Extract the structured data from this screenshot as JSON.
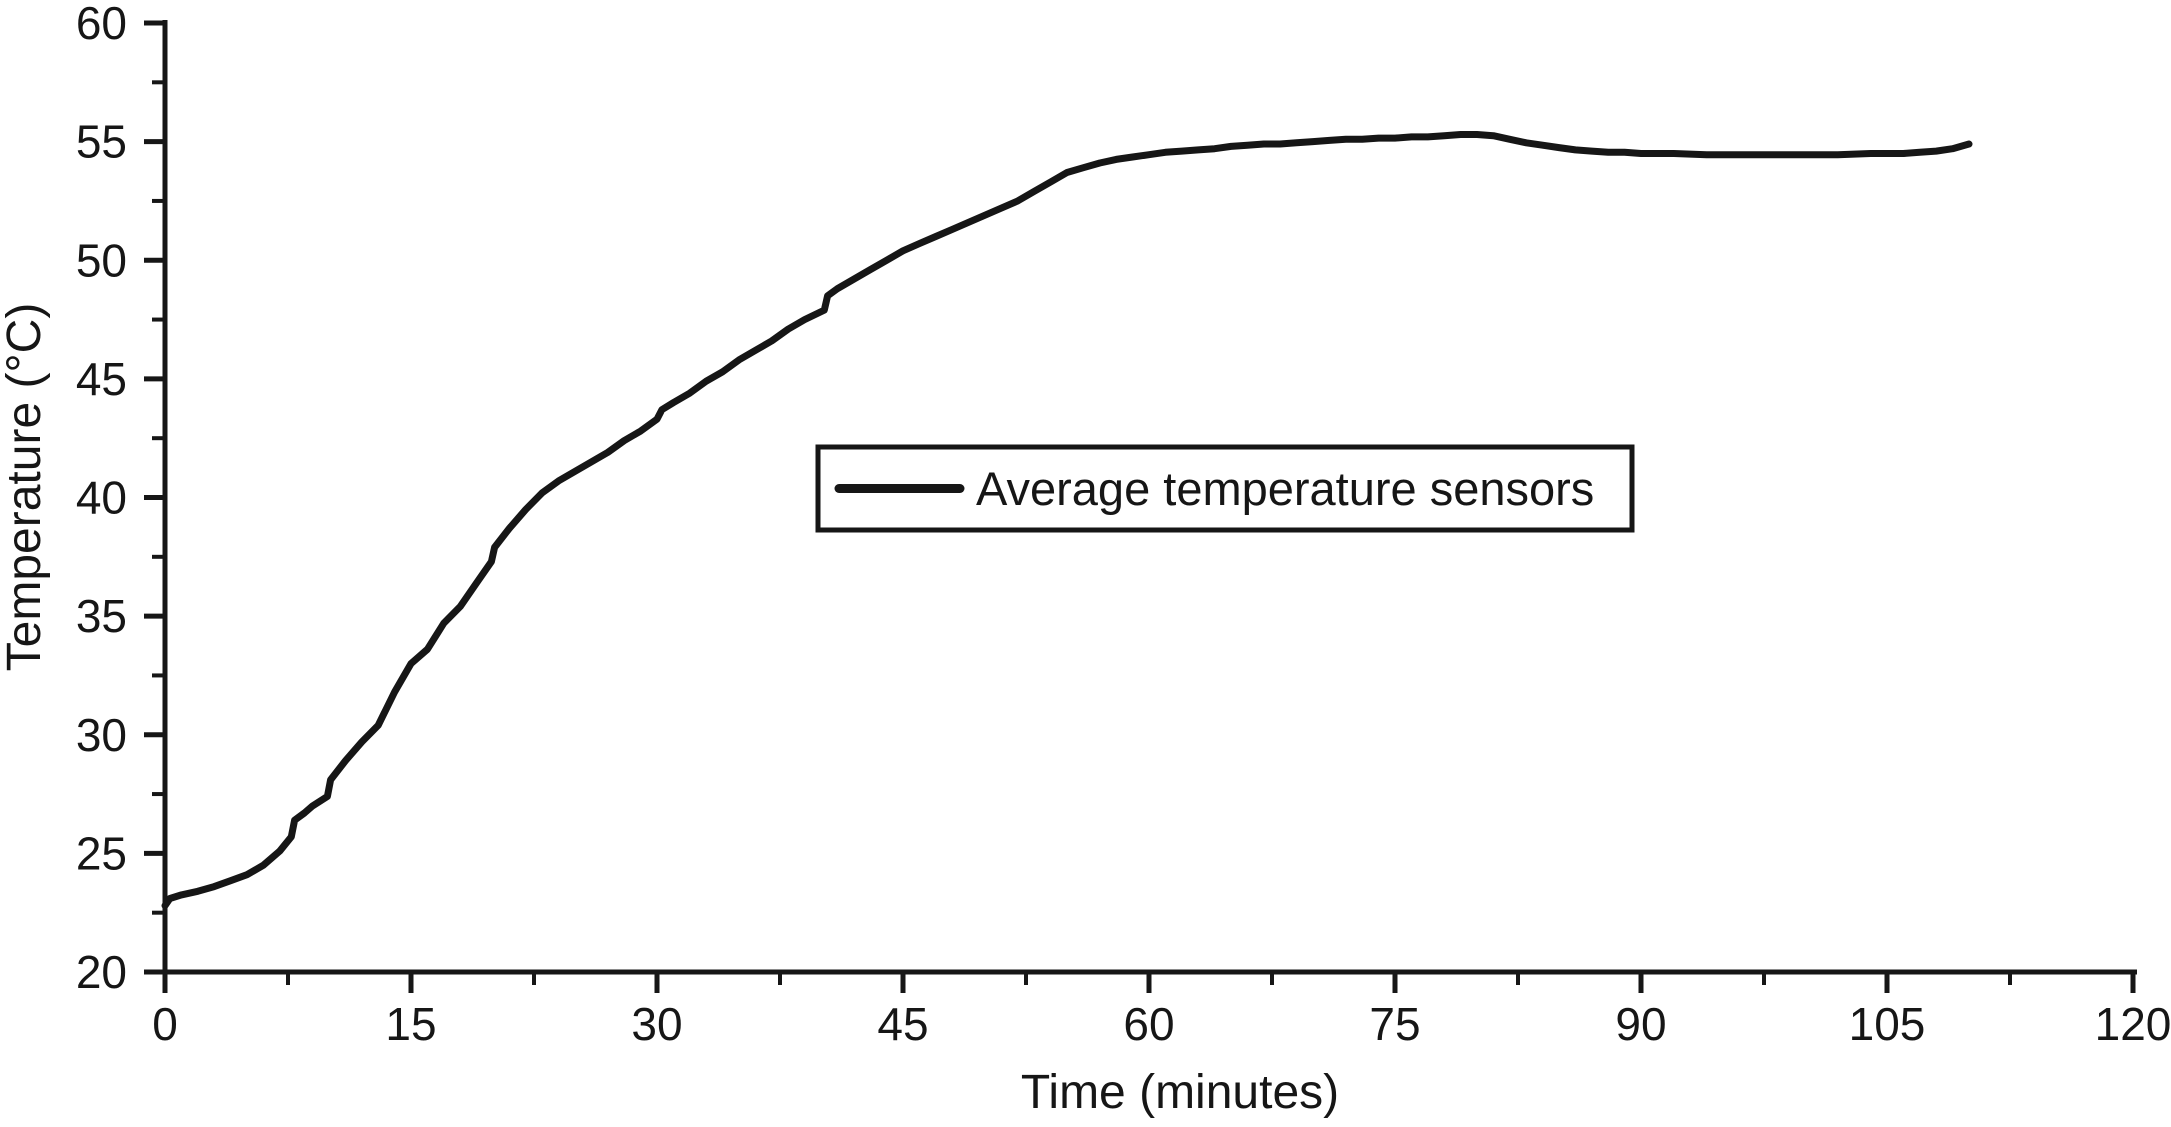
{
  "figure": {
    "background_color": "#ffffff",
    "ink_color": "#161616"
  },
  "chart_data": {
    "type": "line",
    "title": "",
    "xlabel": "Time (minutes)",
    "ylabel": "Temperature (°C)",
    "xlim": [
      0,
      120
    ],
    "ylim": [
      20,
      60
    ],
    "grid": false,
    "x_major_ticks": [
      0,
      15,
      30,
      45,
      60,
      75,
      90,
      105,
      120
    ],
    "x_tick_labels": [
      "0",
      "15",
      "30",
      "45",
      "60",
      "75",
      "90",
      "105",
      "120"
    ],
    "x_minor_ticks": [
      7.5,
      22.5,
      37.5,
      52.5,
      67.5,
      82.5,
      97.5,
      112.5
    ],
    "y_major_ticks": [
      20,
      25,
      30,
      35,
      40,
      45,
      50,
      55,
      60
    ],
    "y_tick_labels": [
      "20",
      "25",
      "30",
      "35",
      "40",
      "45",
      "50",
      "55",
      "60"
    ],
    "y_minor_ticks": [
      22.5,
      27.5,
      32.5,
      37.5,
      42.5,
      47.5,
      52.5,
      57.5
    ],
    "legend": {
      "position": "inside-center",
      "border": true,
      "entries": [
        {
          "label": "Average temperature sensors",
          "color": "#161616",
          "line_width": 9
        }
      ]
    },
    "series": [
      {
        "name": "Average temperature sensors",
        "color": "#161616",
        "points": [
          [
            0,
            22.8
          ],
          [
            0.3,
            23.1
          ],
          [
            1,
            23.25
          ],
          [
            2,
            23.4
          ],
          [
            3,
            23.6
          ],
          [
            4,
            23.85
          ],
          [
            5,
            24.1
          ],
          [
            6,
            24.5
          ],
          [
            7,
            25.1
          ],
          [
            7.7,
            25.7
          ],
          [
            7.9,
            26.4
          ],
          [
            8.5,
            26.7
          ],
          [
            9,
            27
          ],
          [
            9.9,
            27.4
          ],
          [
            10.1,
            28.1
          ],
          [
            11,
            28.9
          ],
          [
            12,
            29.7
          ],
          [
            13,
            30.4
          ],
          [
            14,
            31.8
          ],
          [
            15,
            33
          ],
          [
            16,
            33.6
          ],
          [
            17,
            34.7
          ],
          [
            18,
            35.4
          ],
          [
            19,
            36.4
          ],
          [
            19.9,
            37.3
          ],
          [
            20.1,
            37.9
          ],
          [
            21,
            38.7
          ],
          [
            22,
            39.5
          ],
          [
            23,
            40.2
          ],
          [
            24,
            40.7
          ],
          [
            25,
            41.1
          ],
          [
            26,
            41.5
          ],
          [
            27,
            41.9
          ],
          [
            28,
            42.4
          ],
          [
            29,
            42.8
          ],
          [
            30,
            43.3
          ],
          [
            30.3,
            43.7
          ],
          [
            31,
            44
          ],
          [
            32,
            44.4
          ],
          [
            33,
            44.9
          ],
          [
            34,
            45.3
          ],
          [
            35,
            45.8
          ],
          [
            36,
            46.2
          ],
          [
            37,
            46.6
          ],
          [
            38,
            47.1
          ],
          [
            39,
            47.5
          ],
          [
            40.2,
            47.9
          ],
          [
            40.4,
            48.5
          ],
          [
            41,
            48.8
          ],
          [
            42,
            49.2
          ],
          [
            43,
            49.6
          ],
          [
            44,
            50
          ],
          [
            45,
            50.4
          ],
          [
            46,
            50.7
          ],
          [
            47,
            51
          ],
          [
            48,
            51.3
          ],
          [
            49,
            51.6
          ],
          [
            50,
            51.9
          ],
          [
            51,
            52.2
          ],
          [
            52,
            52.5
          ],
          [
            53,
            52.9
          ],
          [
            54,
            53.3
          ],
          [
            55,
            53.7
          ],
          [
            56,
            53.9
          ],
          [
            57,
            54.1
          ],
          [
            58,
            54.25
          ],
          [
            59,
            54.35
          ],
          [
            60,
            54.45
          ],
          [
            61,
            54.55
          ],
          [
            62,
            54.6
          ],
          [
            63,
            54.65
          ],
          [
            64,
            54.7
          ],
          [
            65,
            54.8
          ],
          [
            66,
            54.85
          ],
          [
            67,
            54.9
          ],
          [
            68,
            54.9
          ],
          [
            69,
            54.95
          ],
          [
            70,
            55
          ],
          [
            71,
            55.05
          ],
          [
            72,
            55.1
          ],
          [
            73,
            55.1
          ],
          [
            74,
            55.15
          ],
          [
            75,
            55.15
          ],
          [
            76,
            55.2
          ],
          [
            77,
            55.2
          ],
          [
            78,
            55.25
          ],
          [
            79,
            55.3
          ],
          [
            80,
            55.3
          ],
          [
            81,
            55.25
          ],
          [
            82,
            55.1
          ],
          [
            83,
            54.95
          ],
          [
            84,
            54.85
          ],
          [
            85,
            54.75
          ],
          [
            86,
            54.65
          ],
          [
            87,
            54.6
          ],
          [
            88,
            54.55
          ],
          [
            89,
            54.55
          ],
          [
            90,
            54.5
          ],
          [
            92,
            54.5
          ],
          [
            94,
            54.45
          ],
          [
            96,
            54.45
          ],
          [
            98,
            54.45
          ],
          [
            100,
            54.45
          ],
          [
            102,
            54.45
          ],
          [
            104,
            54.5
          ],
          [
            106,
            54.5
          ],
          [
            107,
            54.55
          ],
          [
            108,
            54.6
          ],
          [
            109,
            54.7
          ],
          [
            110,
            54.9
          ]
        ]
      }
    ]
  }
}
